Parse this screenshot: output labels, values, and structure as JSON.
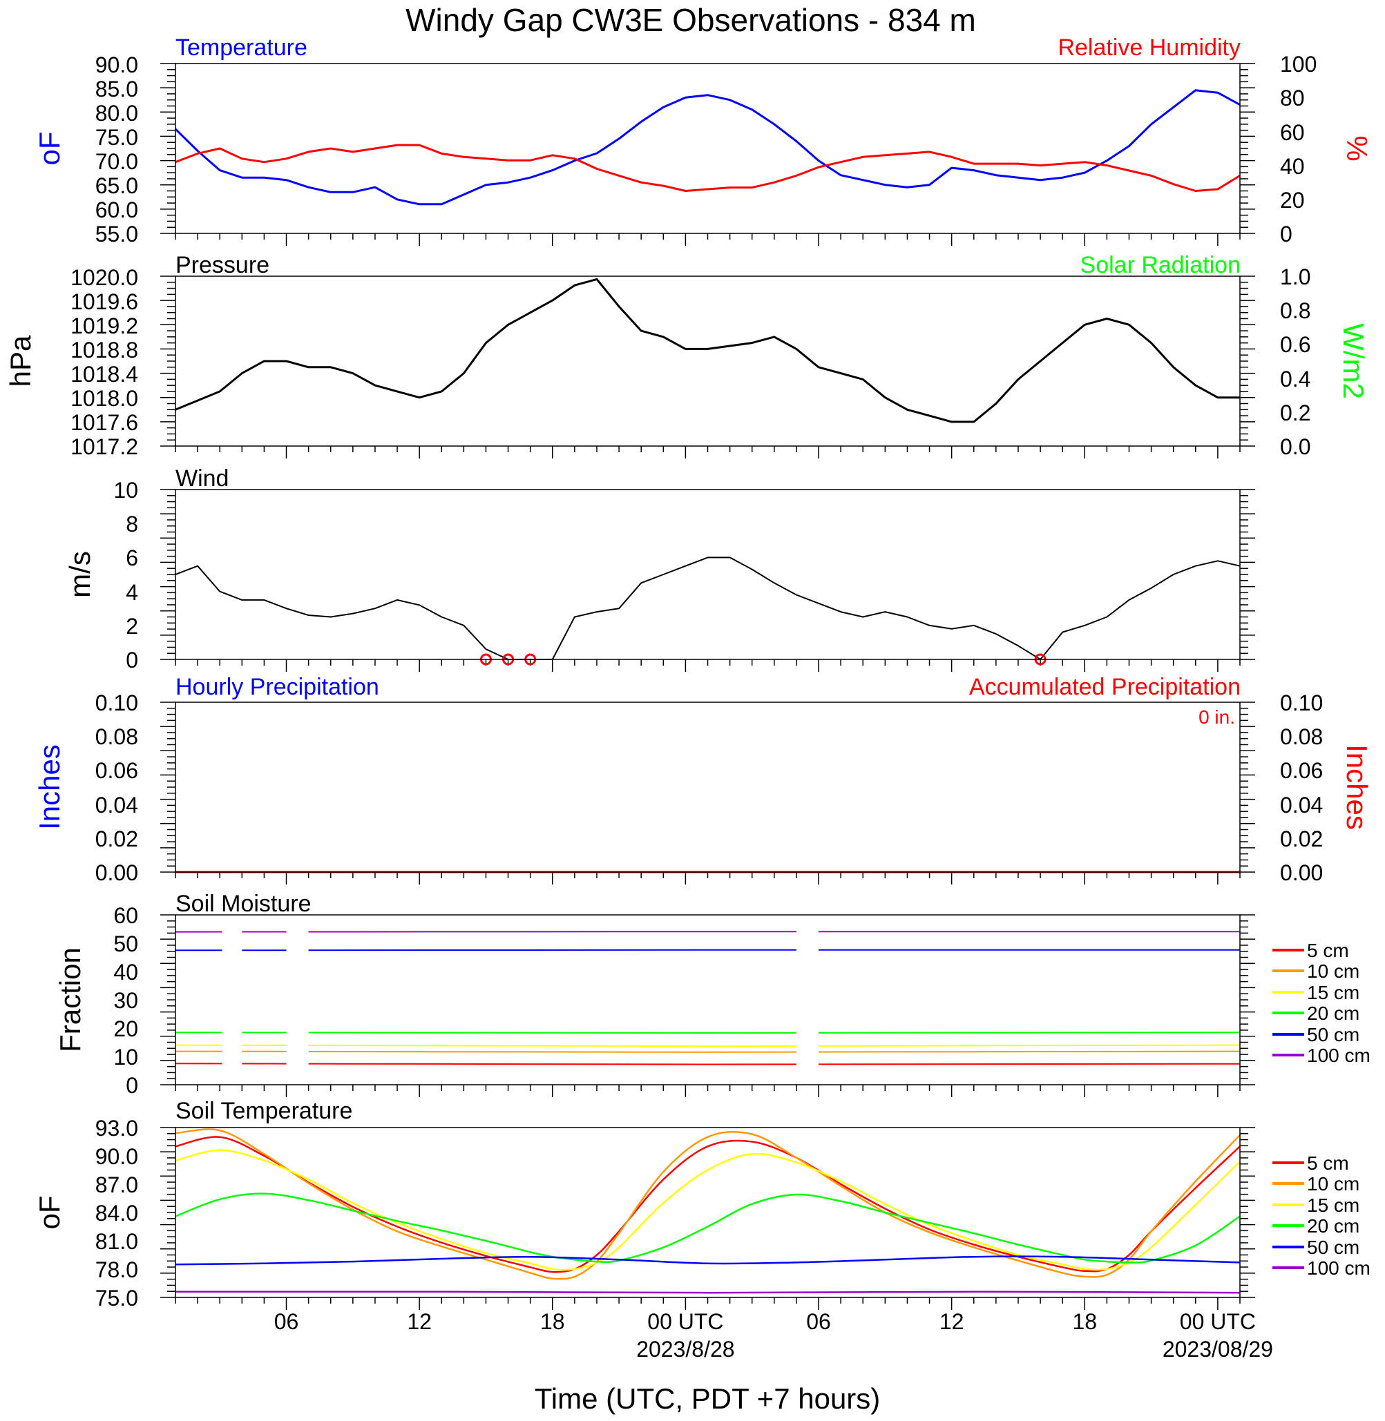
{
  "figure": {
    "title": "Windy Gap CW3E Observations - 834 m",
    "xlabel": "Time (UTC, PDT +7 hours)"
  },
  "x_axis": {
    "range_hours": [
      0,
      48
    ],
    "ticks": [
      {
        "h": 5,
        "label": "06",
        "date": ""
      },
      {
        "h": 11,
        "label": "12",
        "date": ""
      },
      {
        "h": 17,
        "label": "18",
        "date": ""
      },
      {
        "h": 23,
        "label": "00 UTC",
        "date": "2023/8/28"
      },
      {
        "h": 29,
        "label": "06",
        "date": ""
      },
      {
        "h": 35,
        "label": "12",
        "date": ""
      },
      {
        "h": 41,
        "label": "18",
        "date": ""
      },
      {
        "h": 47,
        "label": "00 UTC",
        "date": "2023/08/29"
      }
    ]
  },
  "colors": {
    "temperature": "#0000ff",
    "humidity": "#ff0000",
    "pressure": "#000000",
    "solar": "#00ff00",
    "wind": "#000000",
    "barb": "#ff0000",
    "precip_hourly": "#0000ff",
    "precip_accum": "#ff0000",
    "depth_5": "#ff0000",
    "depth_10": "#ff9900",
    "depth_15": "#ffff00",
    "depth_20": "#00ff00",
    "depth_50": "#0000ff",
    "depth_100": "#9900cc"
  },
  "panels": {
    "temp_rh": {
      "left_title": "Temperature",
      "right_title": "Relative Humidity",
      "left_unit": "oF",
      "right_unit": "%",
      "left_ticks": [
        "90.0",
        "85.0",
        "80.0",
        "75.0",
        "70.0",
        "65.0",
        "60.0",
        "55.0"
      ],
      "right_ticks": [
        "100",
        "80",
        "60",
        "40",
        "20",
        "0"
      ]
    },
    "pressure": {
      "left_title": "Pressure",
      "right_title": "Solar Radiation",
      "left_unit": "hPa",
      "right_unit": "W/m2",
      "left_ticks": [
        "1020.0",
        "1019.6",
        "1019.2",
        "1018.8",
        "1018.4",
        "1018.0",
        "1017.6",
        "1017.2"
      ],
      "right_ticks": [
        "1.0",
        "0.8",
        "0.6",
        "0.4",
        "0.2",
        "0.0"
      ]
    },
    "wind": {
      "left_title": "Wind",
      "left_unit": "m/s",
      "left_ticks": [
        "10",
        "8",
        "6",
        "4",
        "2",
        "0"
      ]
    },
    "precip": {
      "left_title": "Hourly Precipitation",
      "right_title": "Accumulated Precipitation",
      "total_label": "0 in.",
      "left_unit": "Inches",
      "right_unit": "Inches",
      "left_ticks": [
        "0.10",
        "0.08",
        "0.06",
        "0.04",
        "0.02",
        "0.00"
      ],
      "right_ticks": [
        "0.10",
        "0.08",
        "0.06",
        "0.04",
        "0.02",
        "0.00"
      ]
    },
    "soil_moisture": {
      "left_title": "Soil Moisture",
      "left_unit": "Fraction",
      "left_ticks": [
        "60",
        "50",
        "40",
        "30",
        "20",
        "10",
        "0"
      ],
      "legend": [
        "5 cm",
        "10 cm",
        "15 cm",
        "20 cm",
        "50 cm",
        "100 cm"
      ]
    },
    "soil_temp": {
      "left_title": "Soil Temperature",
      "left_unit": "oF",
      "left_ticks": [
        "93.0",
        "90.0",
        "87.0",
        "84.0",
        "81.0",
        "78.0",
        "75.0"
      ],
      "legend": [
        "5 cm",
        "10 cm",
        "15 cm",
        "20 cm",
        "50 cm",
        "100 cm"
      ]
    }
  },
  "chart_data": [
    {
      "type": "line",
      "title": "Temperature / Relative Humidity",
      "x_unit": "hours since 2023-08-27 01 UTC",
      "ylim_left": [
        55,
        90
      ],
      "ylim_right": [
        0,
        100
      ],
      "series": [
        {
          "name": "Temperature",
          "axis": "left",
          "color": "#0000ff",
          "x": [
            0,
            1,
            2,
            3,
            4,
            5,
            6,
            7,
            8,
            9,
            10,
            11,
            12,
            13,
            14,
            15,
            16,
            17,
            18,
            19,
            20,
            21,
            22,
            23,
            24,
            25,
            26,
            27,
            28,
            29,
            30,
            31,
            32,
            33,
            34,
            35,
            36,
            37,
            38,
            39,
            40,
            41,
            42,
            43,
            44,
            45,
            46,
            47,
            48
          ],
          "values": [
            76.5,
            72.0,
            68.0,
            66.5,
            66.5,
            66.0,
            64.5,
            63.5,
            63.5,
            64.5,
            62.0,
            61.0,
            61.0,
            63.0,
            65.0,
            65.5,
            66.5,
            68.0,
            70.0,
            71.5,
            74.5,
            78.0,
            81.0,
            83.0,
            83.5,
            82.5,
            80.5,
            77.5,
            74.0,
            70.0,
            67.0,
            66.0,
            65.0,
            64.5,
            65.0,
            68.5,
            68.0,
            67.0,
            66.5,
            66.0,
            66.5,
            67.5,
            70.0,
            73.0,
            77.5,
            81.0,
            84.5,
            84.0,
            81.5
          ]
        },
        {
          "name": "Relative Humidity",
          "axis": "right",
          "color": "#ff0000",
          "x": [
            0,
            1,
            2,
            3,
            4,
            5,
            6,
            7,
            8,
            9,
            10,
            11,
            12,
            13,
            14,
            15,
            16,
            17,
            18,
            19,
            20,
            21,
            22,
            23,
            24,
            25,
            26,
            27,
            28,
            29,
            30,
            31,
            32,
            33,
            34,
            35,
            36,
            37,
            38,
            39,
            40,
            41,
            42,
            43,
            44,
            45,
            46,
            47,
            48
          ],
          "values": [
            42,
            47,
            50,
            44,
            42,
            44,
            48,
            50,
            48,
            50,
            52,
            52,
            47,
            45,
            44,
            43,
            43,
            46,
            44,
            38,
            34,
            30,
            28,
            25,
            26,
            27,
            27,
            30,
            34,
            39,
            42,
            45,
            46,
            47,
            48,
            45,
            41,
            41,
            41,
            40,
            41,
            42,
            40,
            37,
            34,
            29,
            25,
            26,
            34
          ]
        }
      ]
    },
    {
      "type": "line",
      "title": "Pressure",
      "x_unit": "hours since 2023-08-27 01 UTC",
      "ylim_left": [
        1017.2,
        1020.0
      ],
      "ylim_right": [
        0,
        1
      ],
      "series": [
        {
          "name": "Pressure",
          "axis": "left",
          "color": "#000000",
          "x": [
            0,
            1,
            2,
            3,
            4,
            5,
            6,
            7,
            8,
            9,
            10,
            11,
            12,
            13,
            14,
            15,
            16,
            17,
            18,
            19,
            20,
            21,
            22,
            23,
            24,
            25,
            26,
            27,
            28,
            29,
            30,
            31,
            32,
            33,
            34,
            35,
            36,
            37,
            38,
            39,
            40,
            41,
            42,
            43,
            44,
            45,
            46,
            47,
            48
          ],
          "values": [
            1017.8,
            1017.95,
            1018.1,
            1018.4,
            1018.6,
            1018.6,
            1018.5,
            1018.5,
            1018.4,
            1018.2,
            1018.1,
            1018.0,
            1018.1,
            1018.4,
            1018.9,
            1019.2,
            1019.4,
            1019.6,
            1019.85,
            1019.95,
            1019.5,
            1019.1,
            1019.0,
            1018.8,
            1018.8,
            1018.85,
            1018.9,
            1019.0,
            1018.8,
            1018.5,
            1018.4,
            1018.3,
            1018.0,
            1017.8,
            1017.7,
            1017.6,
            1017.6,
            1017.9,
            1018.3,
            1018.6,
            1018.9,
            1019.2,
            1019.3,
            1019.2,
            1018.9,
            1018.5,
            1018.2,
            1018.0,
            1018.0
          ]
        }
      ]
    },
    {
      "type": "line",
      "title": "Wind",
      "x_unit": "hours since 2023-08-27 01 UTC",
      "ylim": [
        0,
        10
      ],
      "series": [
        {
          "name": "Wind speed",
          "color": "#000000",
          "x": [
            0,
            1,
            2,
            3,
            4,
            5,
            6,
            7,
            8,
            9,
            10,
            11,
            12,
            13,
            14,
            15,
            16,
            17,
            18,
            19,
            20,
            21,
            22,
            23,
            24,
            25,
            26,
            27,
            28,
            29,
            30,
            31,
            32,
            33,
            34,
            35,
            36,
            37,
            38,
            39,
            40,
            41,
            42,
            43,
            44,
            45,
            46,
            47,
            48
          ],
          "values": [
            5.0,
            5.5,
            4.0,
            3.5,
            3.5,
            3.0,
            2.6,
            2.5,
            2.7,
            3.0,
            3.5,
            3.2,
            2.5,
            2.0,
            0.6,
            0.0,
            0.0,
            0.0,
            2.5,
            2.8,
            3.0,
            4.5,
            5.0,
            5.5,
            6.0,
            6.0,
            5.3,
            4.5,
            3.8,
            3.3,
            2.8,
            2.5,
            2.8,
            2.5,
            2.0,
            1.8,
            2.0,
            1.5,
            0.8,
            0.0,
            1.6,
            2.0,
            2.5,
            3.5,
            4.2,
            5.0,
            5.5,
            5.8,
            5.5
          ]
        }
      ],
      "calm_markers_x": [
        14,
        15,
        16,
        39
      ]
    },
    {
      "type": "line",
      "title": "Precipitation",
      "x_unit": "hours since 2023-08-27 01 UTC",
      "ylim": [
        0,
        0.1
      ],
      "series": [
        {
          "name": "Hourly Precipitation",
          "color": "#0000ff",
          "x": [
            0,
            48
          ],
          "values": [
            0,
            0
          ]
        },
        {
          "name": "Accumulated Precipitation",
          "color": "#ff0000",
          "x": [
            0,
            48
          ],
          "values": [
            0,
            0
          ]
        }
      ]
    },
    {
      "type": "line",
      "title": "Soil Moisture",
      "x_unit": "hours since 2023-08-27 01 UTC",
      "ylim": [
        0,
        60
      ],
      "gaps_hours": [
        [
          2.1,
          3.0
        ],
        [
          5.0,
          6.0
        ],
        [
          28.0,
          29.0
        ]
      ],
      "series": [
        {
          "name": "5 cm",
          "color": "#ff0000",
          "x": [
            0,
            24,
            48
          ],
          "values": [
            7.5,
            7.2,
            7.4
          ]
        },
        {
          "name": "10 cm",
          "color": "#ff9900",
          "x": [
            0,
            24,
            48
          ],
          "values": [
            11.8,
            11.5,
            11.8
          ]
        },
        {
          "name": "15 cm",
          "color": "#ffff00",
          "x": [
            0,
            24,
            48
          ],
          "values": [
            14.0,
            13.6,
            14.0
          ]
        },
        {
          "name": "20 cm",
          "color": "#00ff00",
          "x": [
            0,
            24,
            48
          ],
          "values": [
            18.5,
            18.3,
            18.5
          ]
        },
        {
          "name": "50 cm",
          "color": "#0000ff",
          "x": [
            0,
            24,
            48
          ],
          "values": [
            47.5,
            47.6,
            47.6
          ]
        },
        {
          "name": "100 cm",
          "color": "#9900cc",
          "x": [
            0,
            24,
            48
          ],
          "values": [
            54.0,
            54.1,
            54.1
          ]
        }
      ]
    },
    {
      "type": "line",
      "title": "Soil Temperature",
      "x_unit": "hours since 2023-08-27 01 UTC",
      "ylim": [
        75,
        93
      ],
      "series": [
        {
          "name": "5 cm",
          "color": "#ff0000",
          "x": [
            0,
            2,
            4,
            6,
            8,
            10,
            12,
            14,
            16,
            17,
            18,
            19,
            20,
            22,
            24,
            26,
            28,
            30,
            32,
            34,
            36,
            38,
            40,
            41,
            42,
            43,
            44,
            46,
            48
          ],
          "values": [
            91.0,
            92.0,
            90.0,
            87.2,
            84.6,
            82.5,
            80.8,
            79.4,
            78.2,
            77.7,
            78.0,
            79.5,
            82.0,
            87.5,
            91.0,
            91.5,
            89.8,
            87.0,
            84.4,
            82.2,
            80.6,
            79.3,
            78.2,
            77.8,
            78.0,
            79.5,
            82.0,
            86.6,
            91.0
          ]
        },
        {
          "name": "10 cm",
          "color": "#ff9900",
          "x": [
            0,
            2,
            4,
            6,
            8,
            10,
            12,
            14,
            16,
            17,
            18,
            19,
            20,
            22,
            24,
            26,
            28,
            30,
            32,
            34,
            36,
            38,
            40,
            41,
            42,
            43,
            44,
            46,
            48
          ],
          "values": [
            92.4,
            92.7,
            90.2,
            87.1,
            84.3,
            82.0,
            80.4,
            79.0,
            77.6,
            77.0,
            77.2,
            78.8,
            81.8,
            88.3,
            92.0,
            92.3,
            89.8,
            86.8,
            84.0,
            81.9,
            80.3,
            78.9,
            77.6,
            77.2,
            77.4,
            79.0,
            82.0,
            87.3,
            92.2
          ]
        },
        {
          "name": "15 cm",
          "color": "#ffff00",
          "x": [
            0,
            2,
            4,
            6,
            8,
            10,
            12,
            14,
            16,
            17,
            18,
            19,
            20,
            22,
            24,
            26,
            28,
            30,
            32,
            34,
            36,
            38,
            40,
            41,
            42,
            43,
            44,
            46,
            48
          ],
          "values": [
            89.5,
            90.6,
            89.5,
            87.5,
            85.0,
            82.9,
            81.2,
            79.7,
            78.6,
            78.0,
            78.0,
            78.7,
            80.3,
            85.0,
            88.5,
            90.2,
            89.3,
            87.3,
            84.9,
            82.7,
            81.0,
            79.5,
            78.5,
            78.0,
            78.0,
            78.7,
            80.3,
            84.8,
            89.4
          ]
        },
        {
          "name": "20 cm",
          "color": "#00ff00",
          "x": [
            0,
            2,
            4,
            6,
            8,
            10,
            12,
            14,
            16,
            17,
            18,
            19,
            20,
            22,
            24,
            26,
            28,
            30,
            32,
            34,
            36,
            38,
            40,
            41,
            42,
            43,
            44,
            46,
            48
          ],
          "values": [
            83.6,
            85.4,
            86.0,
            85.3,
            84.2,
            83.1,
            82.1,
            81.0,
            79.8,
            79.3,
            79.0,
            78.8,
            78.9,
            80.3,
            82.5,
            84.9,
            85.9,
            85.2,
            84.0,
            82.9,
            81.8,
            80.6,
            79.5,
            79.0,
            78.8,
            78.7,
            78.9,
            80.5,
            83.6
          ]
        },
        {
          "name": "50 cm",
          "color": "#0000ff",
          "x": [
            0,
            4,
            8,
            12,
            16,
            20,
            24,
            28,
            32,
            36,
            40,
            44,
            48
          ],
          "values": [
            78.5,
            78.6,
            78.8,
            79.1,
            79.3,
            79.0,
            78.6,
            78.7,
            79.0,
            79.3,
            79.3,
            79.0,
            78.7
          ]
        },
        {
          "name": "100 cm",
          "color": "#9900cc",
          "x": [
            0,
            12,
            24,
            36,
            48
          ],
          "values": [
            75.6,
            75.6,
            75.5,
            75.6,
            75.5
          ]
        }
      ]
    }
  ]
}
